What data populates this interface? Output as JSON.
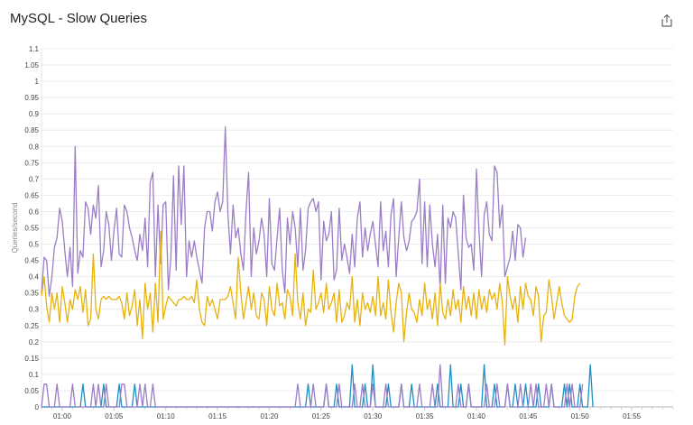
{
  "header": {
    "title": "MySQL - Slow Queries",
    "share_icon": "share-icon"
  },
  "chart_data": {
    "type": "line",
    "title": "MySQL - Slow Queries",
    "ylabel": "Queries/second",
    "xlabel": "",
    "ylim": [
      0,
      1.1
    ],
    "y_ticks": [
      "0",
      "0.05",
      "0.1",
      "0.15",
      "0.2",
      "0.25",
      "0.3",
      "0.35",
      "0.4",
      "0.45",
      "0.5",
      "0.55",
      "0.6",
      "0.65",
      "0.7",
      "0.75",
      "0.8",
      "0.85",
      "0.9",
      "0.95",
      "1",
      "1.05",
      "1.1"
    ],
    "x_ticks": [
      "01:00",
      "01:05",
      "01:10",
      "01:15",
      "01:20",
      "01:25",
      "01:30",
      "01:35",
      "01:40",
      "01:45",
      "01:50",
      "01:55"
    ],
    "x_range_minutes": [
      -2,
      59
    ],
    "grid": true,
    "series": [
      {
        "color": "#9b7ec7",
        "step_minutes": 0.25,
        "values": [
          0.35,
          0.46,
          0.45,
          0.34,
          0.4,
          0.49,
          0.52,
          0.61,
          0.57,
          0.48,
          0.4,
          0.49,
          0.37,
          0.8,
          0.41,
          0.48,
          0.46,
          0.63,
          0.61,
          0.53,
          0.62,
          0.58,
          0.68,
          0.43,
          0.48,
          0.6,
          0.56,
          0.45,
          0.54,
          0.61,
          0.47,
          0.46,
          0.62,
          0.6,
          0.55,
          0.52,
          0.48,
          0.45,
          0.53,
          0.48,
          0.58,
          0.43,
          0.69,
          0.72,
          0.4,
          0.62,
          0.44,
          0.62,
          0.63,
          0.36,
          0.46,
          0.71,
          0.42,
          0.74,
          0.56,
          0.74,
          0.4,
          0.51,
          0.46,
          0.51,
          0.46,
          0.42,
          0.38,
          0.55,
          0.6,
          0.6,
          0.54,
          0.63,
          0.66,
          0.6,
          0.63,
          0.86,
          0.59,
          0.47,
          0.62,
          0.52,
          0.55,
          0.47,
          0.42,
          0.6,
          0.72,
          0.4,
          0.55,
          0.47,
          0.51,
          0.58,
          0.53,
          0.4,
          0.64,
          0.44,
          0.42,
          0.52,
          0.61,
          0.42,
          0.35,
          0.58,
          0.5,
          0.6,
          0.55,
          0.43,
          0.61,
          0.42,
          0.48,
          0.61,
          0.63,
          0.64,
          0.6,
          0.63,
          0.39,
          0.57,
          0.51,
          0.53,
          0.6,
          0.39,
          0.42,
          0.61,
          0.45,
          0.5,
          0.46,
          0.41,
          0.53,
          0.43,
          0.58,
          0.63,
          0.46,
          0.55,
          0.48,
          0.53,
          0.57,
          0.5,
          0.43,
          0.63,
          0.48,
          0.54,
          0.43,
          0.59,
          0.64,
          0.4,
          0.52,
          0.63,
          0.52,
          0.48,
          0.51,
          0.57,
          0.58,
          0.6,
          0.7,
          0.44,
          0.63,
          0.43,
          0.62,
          0.5,
          0.43,
          0.53,
          0.36,
          0.62,
          0.38,
          0.58,
          0.55,
          0.6,
          0.58,
          0.47,
          0.36,
          0.65,
          0.52,
          0.49,
          0.5,
          0.42,
          0.73,
          0.54,
          0.4,
          0.59,
          0.63,
          0.53,
          0.51,
          0.74,
          0.72,
          0.55,
          0.62,
          0.4,
          0.43,
          0.46,
          0.54,
          0.45,
          0.56,
          0.55,
          0.46,
          0.52
        ]
      },
      {
        "color": "#e8b20c",
        "step_minutes": 0.25,
        "values": [
          0.34,
          0.4,
          0.31,
          0.26,
          0.35,
          0.3,
          0.35,
          0.26,
          0.37,
          0.32,
          0.26,
          0.33,
          0.3,
          0.36,
          0.33,
          0.37,
          0.29,
          0.36,
          0.25,
          0.27,
          0.47,
          0.3,
          0.27,
          0.33,
          0.34,
          0.33,
          0.34,
          0.33,
          0.33,
          0.33,
          0.34,
          0.32,
          0.27,
          0.35,
          0.28,
          0.31,
          0.36,
          0.25,
          0.33,
          0.21,
          0.38,
          0.3,
          0.35,
          0.23,
          0.38,
          0.26,
          0.54,
          0.27,
          0.31,
          0.34,
          0.33,
          0.32,
          0.31,
          0.33,
          0.33,
          0.34,
          0.33,
          0.33,
          0.34,
          0.32,
          0.39,
          0.3,
          0.26,
          0.25,
          0.34,
          0.31,
          0.33,
          0.3,
          0.27,
          0.33,
          0.33,
          0.33,
          0.34,
          0.37,
          0.32,
          0.27,
          0.46,
          0.35,
          0.27,
          0.32,
          0.37,
          0.3,
          0.35,
          0.28,
          0.27,
          0.35,
          0.33,
          0.25,
          0.37,
          0.3,
          0.28,
          0.38,
          0.31,
          0.32,
          0.27,
          0.36,
          0.34,
          0.28,
          0.47,
          0.32,
          0.27,
          0.35,
          0.25,
          0.3,
          0.29,
          0.42,
          0.3,
          0.32,
          0.35,
          0.29,
          0.38,
          0.3,
          0.32,
          0.35,
          0.26,
          0.36,
          0.26,
          0.28,
          0.32,
          0.3,
          0.4,
          0.26,
          0.33,
          0.25,
          0.35,
          0.3,
          0.32,
          0.29,
          0.34,
          0.28,
          0.4,
          0.28,
          0.32,
          0.27,
          0.39,
          0.29,
          0.23,
          0.32,
          0.38,
          0.35,
          0.2,
          0.29,
          0.35,
          0.3,
          0.29,
          0.26,
          0.33,
          0.28,
          0.38,
          0.3,
          0.33,
          0.27,
          0.35,
          0.25,
          0.38,
          0.29,
          0.27,
          0.33,
          0.28,
          0.36,
          0.3,
          0.33,
          0.26,
          0.37,
          0.3,
          0.34,
          0.28,
          0.35,
          0.27,
          0.36,
          0.3,
          0.34,
          0.29,
          0.36,
          0.33,
          0.35,
          0.3,
          0.38,
          0.32,
          0.19,
          0.4,
          0.34,
          0.3,
          0.34,
          0.26,
          0.37,
          0.3,
          0.38,
          0.34,
          0.33,
          0.28,
          0.37,
          0.34,
          0.2,
          0.28,
          0.29,
          0.39,
          0.34,
          0.27,
          0.32,
          0.37,
          0.32,
          0.28,
          0.27,
          0.26,
          0.27,
          0.34,
          0.37,
          0.38
        ]
      },
      {
        "color": "#1e8fc4",
        "step_minutes": 0.25,
        "values": [
          0,
          0,
          0,
          0,
          0,
          0,
          0,
          0,
          0,
          0,
          0,
          0,
          0,
          0,
          0,
          0,
          0.07,
          0,
          0,
          0,
          0,
          0,
          0,
          0,
          0.07,
          0,
          0,
          0,
          0,
          0,
          0.07,
          0,
          0,
          0,
          0,
          0,
          0.07,
          0,
          0,
          0,
          0,
          0,
          0,
          0,
          0,
          0,
          0,
          0,
          0,
          0,
          0,
          0,
          0,
          0,
          0,
          0,
          0,
          0,
          0,
          0,
          0,
          0,
          0,
          0,
          0,
          0,
          0,
          0,
          0,
          0,
          0,
          0,
          0,
          0,
          0,
          0,
          0,
          0,
          0,
          0,
          0,
          0,
          0,
          0,
          0,
          0,
          0,
          0,
          0,
          0,
          0,
          0,
          0,
          0,
          0,
          0,
          0,
          0,
          0,
          0,
          0,
          0,
          0,
          0.07,
          0,
          0,
          0,
          0,
          0,
          0,
          0.07,
          0,
          0,
          0,
          0.07,
          0,
          0,
          0,
          0,
          0,
          0.13,
          0,
          0,
          0,
          0,
          0.07,
          0,
          0,
          0.13,
          0,
          0,
          0,
          0,
          0,
          0.07,
          0,
          0,
          0,
          0,
          0.07,
          0,
          0,
          0,
          0.07,
          0,
          0,
          0,
          0,
          0,
          0,
          0,
          0,
          0,
          0.07,
          0,
          0,
          0,
          0,
          0.13,
          0,
          0,
          0,
          0.07,
          0,
          0,
          0.07,
          0,
          0,
          0,
          0,
          0,
          0.13,
          0,
          0,
          0,
          0.07,
          0,
          0,
          0,
          0,
          0.07,
          0,
          0,
          0.07,
          0,
          0,
          0,
          0.07,
          0,
          0,
          0,
          0,
          0.07,
          0,
          0,
          0,
          0,
          0.07,
          0,
          0,
          0,
          0,
          0.07,
          0,
          0.07,
          0,
          0,
          0,
          0.07,
          0,
          0,
          0,
          0.13,
          0
        ]
      },
      {
        "color": "#9b7ec7",
        "step_minutes": 0.25,
        "values": [
          0,
          0.07,
          0.07,
          0,
          0,
          0,
          0.07,
          0,
          0,
          0,
          0,
          0,
          0.07,
          0,
          0,
          0,
          0,
          0,
          0,
          0,
          0.07,
          0,
          0.07,
          0,
          0,
          0.07,
          0,
          0,
          0,
          0,
          0,
          0.07,
          0.07,
          0,
          0,
          0,
          0,
          0,
          0.07,
          0,
          0.07,
          0,
          0,
          0.07,
          0,
          0,
          0,
          0,
          0,
          0,
          0,
          0,
          0,
          0,
          0,
          0,
          0,
          0,
          0,
          0,
          0,
          0,
          0,
          0,
          0,
          0,
          0,
          0,
          0,
          0,
          0,
          0,
          0,
          0,
          0,
          0,
          0,
          0,
          0,
          0,
          0,
          0,
          0,
          0,
          0,
          0,
          0,
          0,
          0,
          0,
          0,
          0,
          0,
          0,
          0,
          0,
          0,
          0,
          0,
          0.07,
          0,
          0,
          0,
          0,
          0,
          0.07,
          0,
          0,
          0,
          0,
          0.07,
          0,
          0,
          0,
          0,
          0.07,
          0,
          0,
          0,
          0,
          0,
          0.07,
          0,
          0,
          0.07,
          0,
          0,
          0,
          0.07,
          0,
          0,
          0,
          0,
          0.07,
          0,
          0,
          0,
          0,
          0,
          0.07,
          0,
          0,
          0,
          0,
          0,
          0,
          0.07,
          0,
          0,
          0,
          0,
          0.07,
          0,
          0,
          0.13,
          0,
          0,
          0,
          0,
          0,
          0,
          0.07,
          0,
          0,
          0,
          0.07,
          0,
          0,
          0,
          0,
          0,
          0,
          0.07,
          0,
          0,
          0,
          0.07,
          0,
          0,
          0,
          0.07,
          0,
          0,
          0,
          0,
          0.07,
          0,
          0,
          0,
          0.07,
          0,
          0.07,
          0,
          0,
          0,
          0.07,
          0,
          0.07,
          0,
          0,
          0,
          0,
          0,
          0.07,
          0,
          0.07,
          0,
          0,
          0,
          0.07
        ]
      }
    ]
  }
}
